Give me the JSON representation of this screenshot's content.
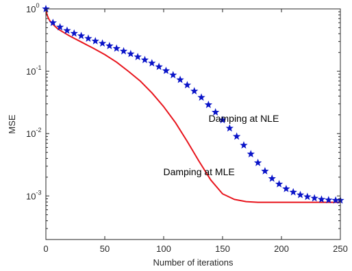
{
  "chart_data": {
    "type": "line",
    "title": "",
    "xlabel": "Number of iterations",
    "ylabel": "MSE",
    "xlim": [
      0,
      250
    ],
    "ylim": [
      0.0002,
      1
    ],
    "yscale": "log",
    "grid": false,
    "x_ticks": [
      {
        "value": 0,
        "label": "0"
      },
      {
        "value": 50,
        "label": "50"
      },
      {
        "value": 100,
        "label": "100"
      },
      {
        "value": 150,
        "label": "150"
      },
      {
        "value": 200,
        "label": "200"
      },
      {
        "value": 250,
        "label": "250"
      }
    ],
    "y_ticks": [
      {
        "value": 0.001,
        "base": "10",
        "exp": "-3"
      },
      {
        "value": 0.01,
        "base": "10",
        "exp": "-2"
      },
      {
        "value": 0.1,
        "base": "10",
        "exp": "-1"
      },
      {
        "value": 1,
        "base": "10",
        "exp": "0"
      }
    ],
    "series": [
      {
        "color": "#e8141c",
        "style": "solid-line",
        "x": [
          0,
          1,
          2,
          3,
          5,
          8,
          10,
          15,
          20,
          25,
          30,
          40,
          50,
          60,
          70,
          80,
          90,
          100,
          110,
          120,
          130,
          140,
          150,
          160,
          170,
          180,
          190,
          200,
          210,
          220,
          230,
          240,
          250
        ],
        "y": [
          1.0,
          0.8,
          0.72,
          0.66,
          0.59,
          0.52,
          0.48,
          0.42,
          0.37,
          0.33,
          0.295,
          0.235,
          0.185,
          0.14,
          0.1,
          0.07,
          0.045,
          0.027,
          0.015,
          0.0075,
          0.0036,
          0.0018,
          0.00108,
          0.00088,
          0.00081,
          0.00079,
          0.00079,
          0.00079,
          0.00079,
          0.00079,
          0.00079,
          0.00079,
          0.00079
        ]
      },
      {
        "color": "#0a14c8",
        "style": "star-markers",
        "x": [
          0,
          6,
          12,
          18,
          24,
          30,
          36,
          42,
          48,
          54,
          60,
          66,
          72,
          78,
          84,
          90,
          96,
          102,
          108,
          114,
          120,
          126,
          132,
          138,
          144,
          150,
          156,
          162,
          168,
          174,
          180,
          186,
          192,
          198,
          204,
          210,
          216,
          222,
          228,
          234,
          240,
          246,
          250
        ],
        "y": [
          1.0,
          0.6,
          0.51,
          0.45,
          0.405,
          0.37,
          0.335,
          0.305,
          0.28,
          0.255,
          0.232,
          0.21,
          0.19,
          0.17,
          0.152,
          0.135,
          0.118,
          0.102,
          0.087,
          0.073,
          0.06,
          0.048,
          0.038,
          0.029,
          0.022,
          0.0165,
          0.0122,
          0.009,
          0.0065,
          0.0047,
          0.0034,
          0.0025,
          0.0019,
          0.00155,
          0.0013,
          0.00115,
          0.00104,
          0.00097,
          0.00092,
          0.00088,
          0.00086,
          0.00085,
          0.00085
        ]
      }
    ],
    "annotations": [
      {
        "text": "Damping at NLE",
        "x": 168,
        "y": 0.0155
      },
      {
        "text": "Damping at MLE",
        "x": 130,
        "y": 0.00215
      }
    ]
  }
}
